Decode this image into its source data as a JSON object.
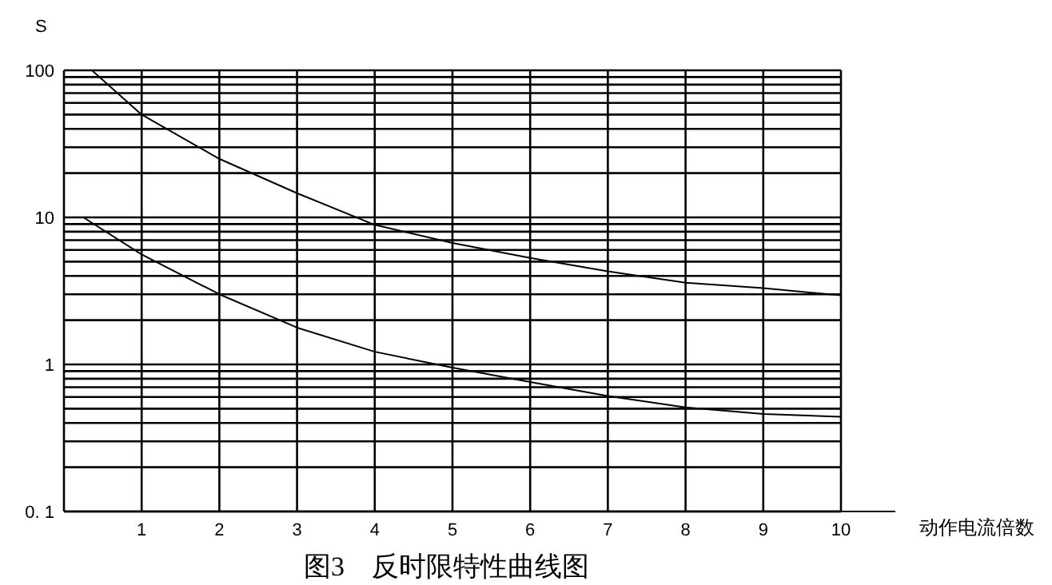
{
  "chart_data": {
    "type": "line",
    "title": "图3　反时限特性曲线图",
    "ylabel": "S",
    "xlabel": "动作电流倍数",
    "log": "y",
    "grid": true,
    "marker": "none",
    "line_style": "solid",
    "xlim": [
      0,
      10
    ],
    "xticks": [
      1,
      2,
      3,
      4,
      5,
      6,
      7,
      8,
      9,
      10
    ],
    "ylim": [
      0.1,
      100
    ],
    "yticks": [
      {
        "value": 0.1,
        "label": "0. 1"
      },
      {
        "value": 0.2,
        "label": null
      },
      {
        "value": 0.3,
        "label": null
      },
      {
        "value": 0.4,
        "label": null
      },
      {
        "value": 0.5,
        "label": null
      },
      {
        "value": 0.6,
        "label": null
      },
      {
        "value": 0.7,
        "label": null
      },
      {
        "value": 0.8,
        "label": null
      },
      {
        "value": 0.9,
        "label": null
      },
      1,
      {
        "value": 2,
        "label": null
      },
      {
        "value": 3,
        "label": null
      },
      {
        "value": 4,
        "label": null
      },
      {
        "value": 5,
        "label": null
      },
      {
        "value": 6,
        "label": null
      },
      {
        "value": 7,
        "label": null
      },
      {
        "value": 8,
        "label": null
      },
      {
        "value": 9,
        "label": null
      },
      10,
      {
        "value": 20,
        "label": null
      },
      {
        "value": 30,
        "label": null
      },
      {
        "value": 40,
        "label": null
      },
      {
        "value": 50,
        "label": null
      },
      {
        "value": 60,
        "label": null
      },
      {
        "value": 70,
        "label": null
      },
      {
        "value": 80,
        "label": null
      },
      {
        "value": 90,
        "label": null
      },
      100
    ],
    "series": [
      {
        "color": "#000000",
        "x": [
          0.36,
          1,
          2,
          3,
          4,
          5,
          6,
          7,
          8,
          9,
          10
        ],
        "values": [
          100,
          50,
          25,
          14.6,
          8.9,
          6.7,
          5.3,
          4.3,
          3.6,
          3.3,
          2.95
        ]
      },
      {
        "color": "#000000",
        "x": [
          0.25,
          1,
          2,
          3,
          4,
          5,
          6,
          7,
          8,
          9,
          10
        ],
        "values": [
          10,
          5.6,
          3.0,
          1.78,
          1.22,
          0.95,
          0.76,
          0.61,
          0.51,
          0.46,
          0.44
        ]
      }
    ]
  }
}
